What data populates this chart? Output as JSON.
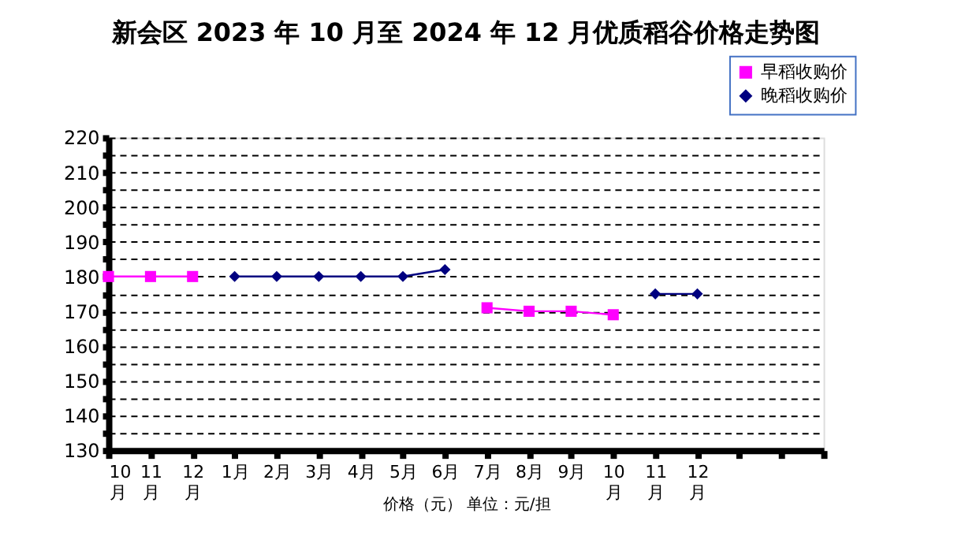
{
  "chart_data": {
    "type": "line",
    "title": "新会区 2023 年 10 月至 2024 年 12 月优质稻谷价格走势图",
    "xlabel": "价格（元） 单位：元/担",
    "categories": [
      "10月",
      "11月",
      "12月",
      "1月",
      "2月",
      "3月",
      "4月",
      "5月",
      "6月",
      "7月",
      "8月",
      "9月",
      "10月",
      "11月",
      "12月",
      null,
      null,
      null
    ],
    "series": [
      {
        "name": "早稻收购价",
        "color": "#ff00ff",
        "marker": "square",
        "values": [
          180,
          180,
          180,
          null,
          null,
          null,
          null,
          null,
          null,
          171,
          170,
          170,
          169,
          null,
          null,
          null,
          null,
          null
        ]
      },
      {
        "name": "晚稻收购价",
        "color": "#000080",
        "marker": "diamond",
        "values": [
          null,
          null,
          null,
          180,
          180,
          180,
          180,
          180,
          182,
          null,
          null,
          null,
          null,
          175,
          175,
          null,
          null,
          null
        ]
      }
    ],
    "ylim": [
      130,
      220
    ],
    "yticks": [
      130,
      {
        "value": 135,
        "label": null
      },
      140,
      {
        "value": 145,
        "label": null
      },
      150,
      {
        "value": 155,
        "label": null
      },
      160,
      {
        "value": 165,
        "label": null
      },
      170,
      {
        "value": 175,
        "label": null
      },
      180,
      {
        "value": 185,
        "label": null
      },
      190,
      {
        "value": 195,
        "label": null
      },
      200,
      {
        "value": 205,
        "label": null
      },
      210,
      {
        "value": 215,
        "label": null
      },
      220
    ],
    "grid": "y",
    "legend": "top right",
    "line_style": "solid"
  }
}
